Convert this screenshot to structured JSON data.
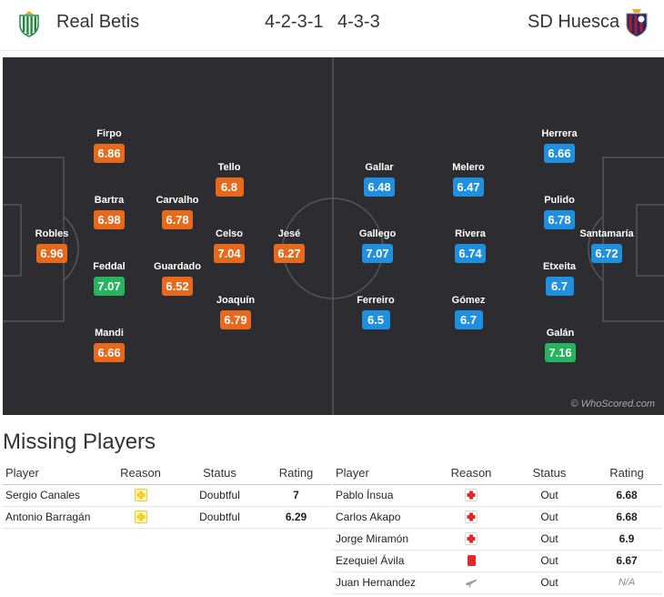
{
  "header": {
    "home_team": "Real Betis",
    "away_team": "SD Huesca",
    "home_formation": "4-2-3-1",
    "away_formation": "4-3-3"
  },
  "pitch": {
    "watermark": "© WhoScored.com",
    "home_players": [
      {
        "name": "Robles",
        "rating": "6.96",
        "best": false
      },
      {
        "name": "Firpo",
        "rating": "6.86",
        "best": false
      },
      {
        "name": "Bartra",
        "rating": "6.98",
        "best": false
      },
      {
        "name": "Feddal",
        "rating": "7.07",
        "best": true
      },
      {
        "name": "Mandi",
        "rating": "6.66",
        "best": false
      },
      {
        "name": "Carvalho",
        "rating": "6.78",
        "best": false
      },
      {
        "name": "Guardado",
        "rating": "6.52",
        "best": false
      },
      {
        "name": "Tello",
        "rating": "6.8",
        "best": false
      },
      {
        "name": "Celso",
        "rating": "7.04",
        "best": false
      },
      {
        "name": "Joaquín",
        "rating": "6.79",
        "best": false
      },
      {
        "name": "Jesé",
        "rating": "6.27",
        "best": false
      }
    ],
    "away_players": [
      {
        "name": "Gallar",
        "rating": "6.48",
        "best": false
      },
      {
        "name": "Gallego",
        "rating": "7.07",
        "best": false
      },
      {
        "name": "Ferreiro",
        "rating": "6.5",
        "best": false
      },
      {
        "name": "Melero",
        "rating": "6.47",
        "best": false
      },
      {
        "name": "Rivera",
        "rating": "6.74",
        "best": false
      },
      {
        "name": "Gómez",
        "rating": "6.7",
        "best": false
      },
      {
        "name": "Herrera",
        "rating": "6.66",
        "best": false
      },
      {
        "name": "Pulido",
        "rating": "6.78",
        "best": false
      },
      {
        "name": "Etxeita",
        "rating": "6.7",
        "best": false
      },
      {
        "name": "Galán",
        "rating": "7.16",
        "best": true
      },
      {
        "name": "Santamaría",
        "rating": "6.72",
        "best": false
      }
    ]
  },
  "missing": {
    "title": "Missing Players",
    "columns": [
      "Player",
      "Reason",
      "Status",
      "Rating"
    ],
    "home": [
      {
        "player": "Sergio Canales",
        "reason_icon": "doubtful-icon",
        "status": "Doubtful",
        "rating": "7"
      },
      {
        "player": "Antonio Barragán",
        "reason_icon": "doubtful-icon",
        "status": "Doubtful",
        "rating": "6.29"
      }
    ],
    "away": [
      {
        "player": "Pablo Ínsua",
        "reason_icon": "injury-icon",
        "status": "Out",
        "rating": "6.68"
      },
      {
        "player": "Carlos Akapo",
        "reason_icon": "injury-icon",
        "status": "Out",
        "rating": "6.68"
      },
      {
        "player": "Jorge Miramón",
        "reason_icon": "injury-icon",
        "status": "Out",
        "rating": "6.9"
      },
      {
        "player": "Ezequiel Ávila",
        "reason_icon": "red-card-icon",
        "status": "Out",
        "rating": "6.67"
      },
      {
        "player": "Juan Hernandez",
        "reason_icon": "international-duty-icon",
        "status": "Out",
        "rating": "N/A"
      }
    ]
  },
  "colors": {
    "home_rating": "#e8681c",
    "away_rating": "#1f8fe0",
    "best_rating": "#26b45e",
    "pitch": "#2d2d31",
    "missing_rating": "#d35400"
  }
}
